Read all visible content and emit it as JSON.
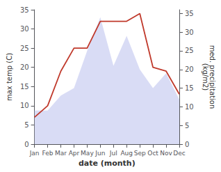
{
  "chart_data": {
    "type": "line",
    "title": "",
    "xlabel": "date (month)",
    "ylabel": "max temp (C)",
    "y2label": "med. precipitation\n(kg/m2)",
    "categories": [
      "Jan",
      "Feb",
      "Mar",
      "Apr",
      "May",
      "Jun",
      "Jul",
      "Aug",
      "Sep",
      "Oct",
      "Nov",
      "Dec"
    ],
    "series": [
      {
        "type": "line",
        "color": "#c0392b",
        "values": [
          7,
          10,
          19,
          25,
          25,
          32,
          32,
          32,
          34,
          20,
          19,
          13
        ]
      },
      {
        "type": "area",
        "axis": "y2",
        "color": "#c5caf0",
        "values": [
          9,
          9,
          13,
          15,
          25,
          34,
          21,
          29,
          20,
          15,
          19,
          12
        ]
      }
    ],
    "ylim": [
      0,
      35
    ],
    "yticks": [
      0,
      5,
      10,
      15,
      20,
      25,
      30,
      35
    ],
    "y2lim": [
      0,
      36
    ],
    "y2ticks": [
      0,
      5,
      10,
      15,
      20,
      25,
      30,
      35
    ],
    "grid": false
  }
}
